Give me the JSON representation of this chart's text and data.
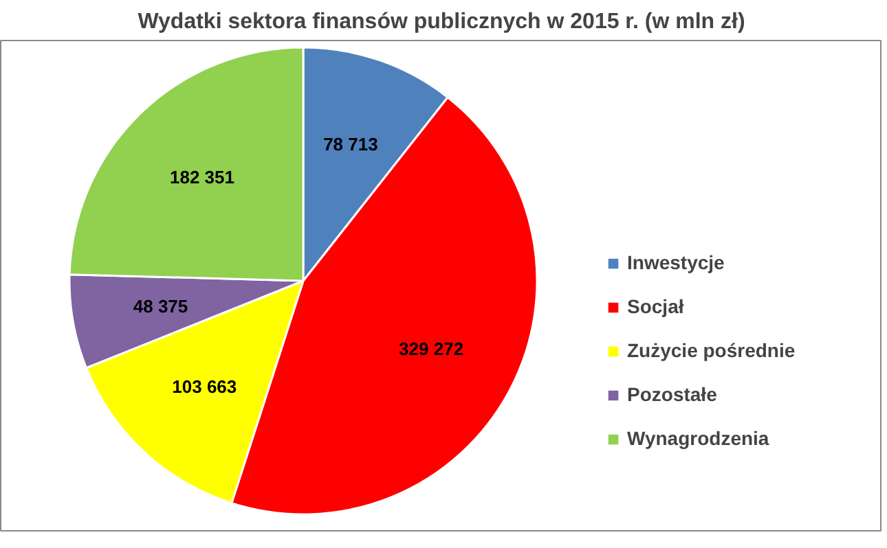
{
  "chart_data": {
    "type": "pie",
    "title": "Wydatki sektora finansów publicznych w 2015 r. (w mln zł)",
    "categories": [
      "Inwestycje",
      "Socjał",
      "Zużycie pośrednie",
      "Pozostałe",
      "Wynagrodzenia"
    ],
    "values": [
      78713,
      329272,
      103663,
      48375,
      182351
    ],
    "colors": [
      "#4f81bd",
      "#ff0000",
      "#ffff00",
      "#8064a2",
      "#92d050"
    ],
    "value_labels": [
      "78 713",
      "329 272",
      "103 663",
      "48 375",
      "182 351"
    ],
    "legend": "right"
  }
}
